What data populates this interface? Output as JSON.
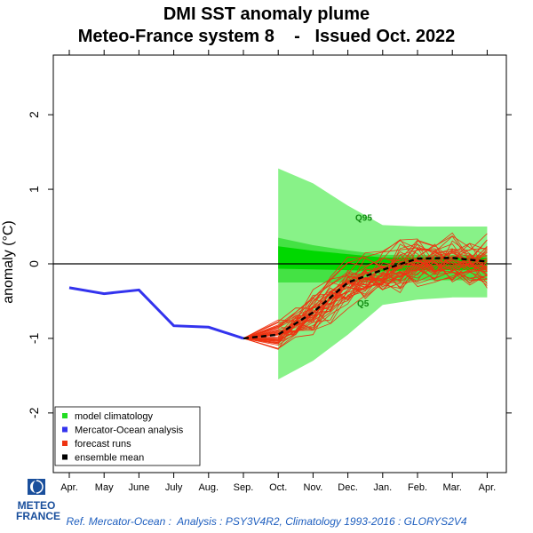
{
  "header": {
    "title_line1": "DMI SST anomaly plume",
    "title_line2": "Meteo-France system 8    -   Issued Oct. 2022"
  },
  "footer": {
    "reference": "Ref. Mercator-Ocean :  Analysis : PSY3V4R2, Climatology 1993-2016 : GLORYS2V4"
  },
  "logo": {
    "line1": "METEO",
    "line2": "FRANCE",
    "color": "#1a4f9c"
  },
  "chart_data": {
    "type": "line",
    "ylabel": "anomaly (°C)",
    "categories": [
      "Apr.",
      "May",
      "June",
      "July",
      "Aug.",
      "Sep.",
      "Oct.",
      "Nov.",
      "Dec.",
      "Jan.",
      "Feb.",
      "Mar.",
      "Apr."
    ],
    "ylim": [
      -2.8,
      2.8
    ],
    "yticks": [
      -2,
      -1,
      0,
      1,
      2
    ],
    "legend": {
      "position": "bottom-left",
      "entries": [
        {
          "label": "model climatology",
          "color": "#22dd22"
        },
        {
          "label": "Mercator-Ocean analysis",
          "color": "#3333ee"
        },
        {
          "label": "forecast runs",
          "color": "#ee3311"
        },
        {
          "label": "ensemble mean",
          "color": "#000000"
        }
      ]
    },
    "annotations": [
      "Q95",
      "Q5"
    ],
    "analysis": {
      "name": "Mercator-Ocean analysis",
      "color": "#3333ee",
      "x_index": [
        0,
        1,
        2,
        3,
        4,
        5
      ],
      "values": [
        -0.32,
        -0.4,
        -0.35,
        -0.83,
        -0.85,
        -1.0
      ]
    },
    "climatology": {
      "name": "model climatology",
      "x_index": [
        6,
        7,
        8,
        9,
        10,
        11,
        12
      ],
      "q95": [
        1.28,
        1.08,
        0.78,
        0.52,
        0.5,
        0.5,
        0.5
      ],
      "q75": [
        0.35,
        0.25,
        0.18,
        0.12,
        0.12,
        0.12,
        0.12
      ],
      "q50": [
        0.12,
        0.1,
        0.08,
        0.05,
        0.05,
        0.05,
        0.05
      ],
      "q25": [
        -0.25,
        -0.25,
        -0.25,
        -0.25,
        -0.22,
        -0.22,
        -0.22
      ],
      "q5": [
        -1.55,
        -1.3,
        -0.95,
        -0.55,
        -0.48,
        -0.45,
        -0.45
      ],
      "colors": {
        "light": "#88f288",
        "mid": "#44e244",
        "dark": "#00d800"
      }
    },
    "forecast": {
      "name": "forecast runs",
      "color": "#ee3311",
      "start_index": 5,
      "start_value": -1.0,
      "runs": 40,
      "mean_x_index": [
        5,
        6,
        7,
        8,
        9,
        10,
        11,
        12
      ],
      "mean_values": [
        -1.0,
        -0.95,
        -0.65,
        -0.25,
        -0.08,
        0.07,
        0.08,
        0.03
      ],
      "spread": [
        0.0,
        0.18,
        0.28,
        0.28,
        0.3,
        0.3,
        0.3,
        0.3
      ]
    },
    "zero_line": 0
  }
}
